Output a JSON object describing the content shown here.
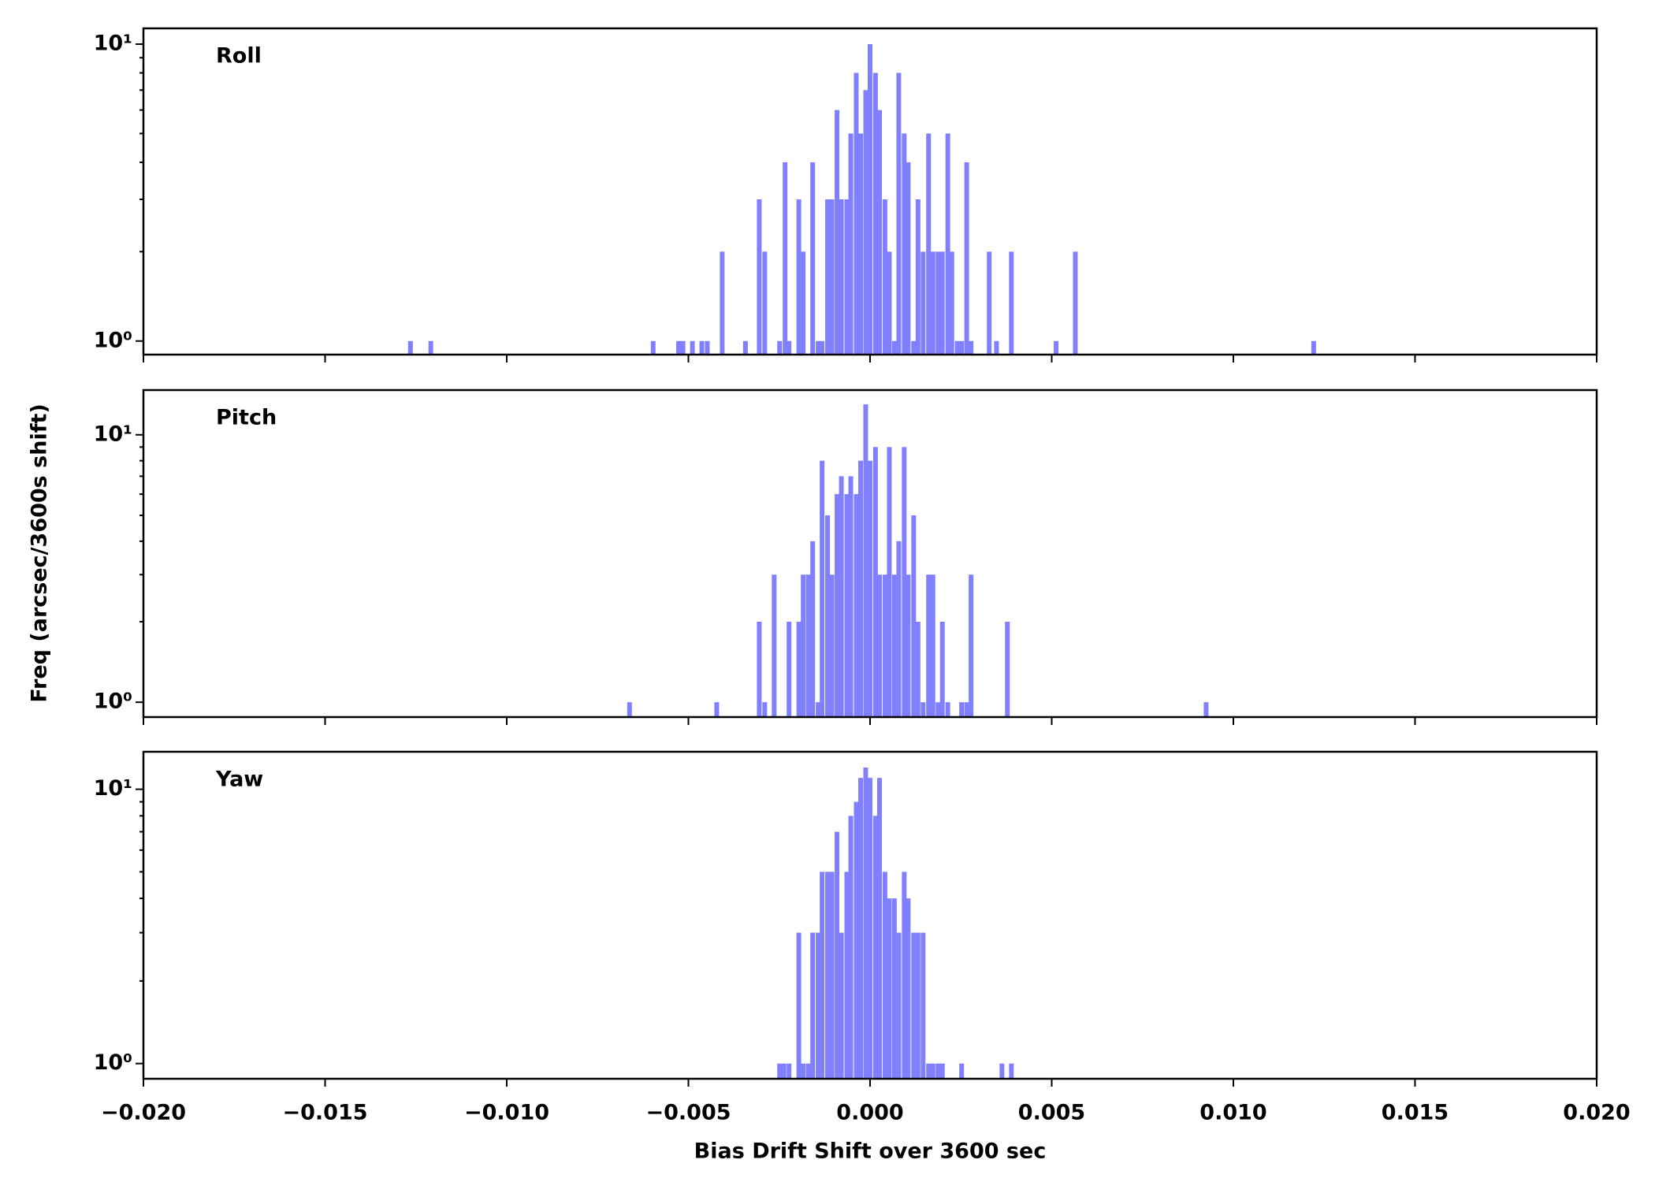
{
  "chart_data": [
    {
      "type": "bar",
      "title": "Roll",
      "yscale": "log",
      "color": "#8080ff",
      "xlim": [
        -0.02,
        0.02
      ],
      "ylim": [
        0.9,
        11.3
      ],
      "yticks": [
        {
          "value": 1,
          "label": "10⁰"
        },
        {
          "value": 10,
          "label": "10¹"
        }
      ],
      "yminorticks": [
        2,
        3,
        4,
        5,
        6,
        7,
        8,
        9
      ],
      "x": [
        -0.01265,
        -0.01209,
        -0.00597,
        -0.00527,
        -0.00515,
        -0.00489,
        -0.00463,
        -0.00448,
        -0.00407,
        -0.00343,
        -0.00305,
        -0.0029,
        -0.00249,
        -0.00234,
        -0.00223,
        -0.00196,
        -0.00184,
        -0.00158,
        -0.00143,
        -0.00132,
        -0.00117,
        -0.00105,
        -0.00091,
        -0.00079,
        -0.00064,
        -0.00053,
        -0.00038,
        -0.00026,
        -0.00012,
        0,
        0.00015,
        0.00026,
        0.00041,
        0.00053,
        0.00067,
        0.00079,
        0.00094,
        0.00105,
        0.0012,
        0.00132,
        0.00146,
        0.00161,
        0.00173,
        0.00187,
        0.00199,
        0.00214,
        0.00225,
        0.0024,
        0.00252,
        0.00266,
        0.00278,
        0.00328,
        0.00348,
        0.00389,
        0.00512,
        0.00565,
        0.01221
      ],
      "values": [
        1,
        1,
        1,
        1,
        1,
        1,
        1,
        1,
        2,
        1,
        3,
        2,
        1,
        4,
        1,
        3,
        2,
        4,
        1,
        1,
        3,
        3,
        6,
        3,
        3,
        5,
        8,
        5,
        7,
        10,
        8,
        6,
        3,
        2,
        1,
        8,
        5,
        4,
        1,
        3,
        2,
        5,
        2,
        2,
        2,
        5,
        2,
        1,
        1,
        4,
        1,
        2,
        1,
        2,
        1,
        2,
        1
      ]
    },
    {
      "type": "bar",
      "title": "Pitch",
      "yscale": "log",
      "color": "#8080ff",
      "ylabel": "Freq (arcsec/3600s shift)",
      "xlim": [
        -0.02,
        0.02
      ],
      "ylim": [
        0.88,
        14.7
      ],
      "yticks": [
        {
          "value": 1,
          "label": "10⁰"
        },
        {
          "value": 10,
          "label": "10¹"
        }
      ],
      "yminorticks": [
        2,
        3,
        4,
        5,
        6,
        7,
        8,
        9
      ],
      "x": [
        -0.00662,
        -0.00422,
        -0.00305,
        -0.0029,
        -0.00264,
        -0.00223,
        -0.00196,
        -0.00184,
        -0.0017,
        -0.00158,
        -0.00143,
        -0.00132,
        -0.00117,
        -0.00105,
        -0.00091,
        -0.00079,
        -0.00064,
        -0.00053,
        -0.00038,
        -0.00026,
        -0.00012,
        0,
        0.00015,
        0.00026,
        0.00041,
        0.00053,
        0.00067,
        0.00079,
        0.00094,
        0.00105,
        0.0012,
        0.00132,
        0.00146,
        0.00161,
        0.00173,
        0.00187,
        0.00199,
        0.00214,
        0.00252,
        0.00266,
        0.00278,
        0.00378,
        0.00925
      ],
      "values": [
        1,
        1,
        2,
        1,
        3,
        2,
        2,
        3,
        3,
        4,
        1,
        8,
        5,
        3,
        6,
        7,
        6,
        7,
        6,
        8,
        13,
        8,
        9,
        3,
        3,
        9,
        3,
        4,
        9,
        3,
        5,
        2,
        1,
        3,
        3,
        1,
        2,
        1,
        1,
        1,
        3,
        2,
        1
      ]
    },
    {
      "type": "bar",
      "title": "Yaw",
      "yscale": "log",
      "color": "#8080ff",
      "xlabel": "Bias Drift Shift over 3600 sec",
      "xlim": [
        -0.02,
        0.02
      ],
      "ylim": [
        0.88,
        13.7
      ],
      "xticks": [
        {
          "value": -0.02,
          "label": "−0.020"
        },
        {
          "value": -0.015,
          "label": "−0.015"
        },
        {
          "value": -0.01,
          "label": "−0.010"
        },
        {
          "value": -0.005,
          "label": "−0.005"
        },
        {
          "value": 0,
          "label": "0.000"
        },
        {
          "value": 0.005,
          "label": "0.005"
        },
        {
          "value": 0.01,
          "label": "0.010"
        },
        {
          "value": 0.015,
          "label": "0.015"
        },
        {
          "value": 0.02,
          "label": "0.020"
        }
      ],
      "yticks": [
        {
          "value": 1,
          "label": "10⁰"
        },
        {
          "value": 10,
          "label": "10¹"
        }
      ],
      "yminorticks": [
        2,
        3,
        4,
        5,
        6,
        7,
        8,
        9
      ],
      "x": [
        -0.00249,
        -0.00237,
        -0.00223,
        -0.00196,
        -0.00184,
        -0.0017,
        -0.00158,
        -0.00143,
        -0.00132,
        -0.00117,
        -0.00105,
        -0.00091,
        -0.00079,
        -0.00064,
        -0.00053,
        -0.00038,
        -0.00026,
        -0.00012,
        0,
        0.00015,
        0.00026,
        0.00041,
        0.00053,
        0.00067,
        0.00079,
        0.00094,
        0.00105,
        0.0012,
        0.00132,
        0.00146,
        0.00161,
        0.00173,
        0.00187,
        0.00199,
        0.00252,
        0.00363,
        0.00389
      ],
      "values": [
        1,
        1,
        1,
        3,
        1,
        1,
        3,
        3,
        5,
        5,
        5,
        7,
        3,
        5,
        8,
        9,
        11,
        12,
        11,
        8,
        11,
        5,
        4,
        4,
        3,
        5,
        4,
        3,
        3,
        3,
        1,
        1,
        1,
        1,
        1,
        1,
        1
      ]
    }
  ]
}
